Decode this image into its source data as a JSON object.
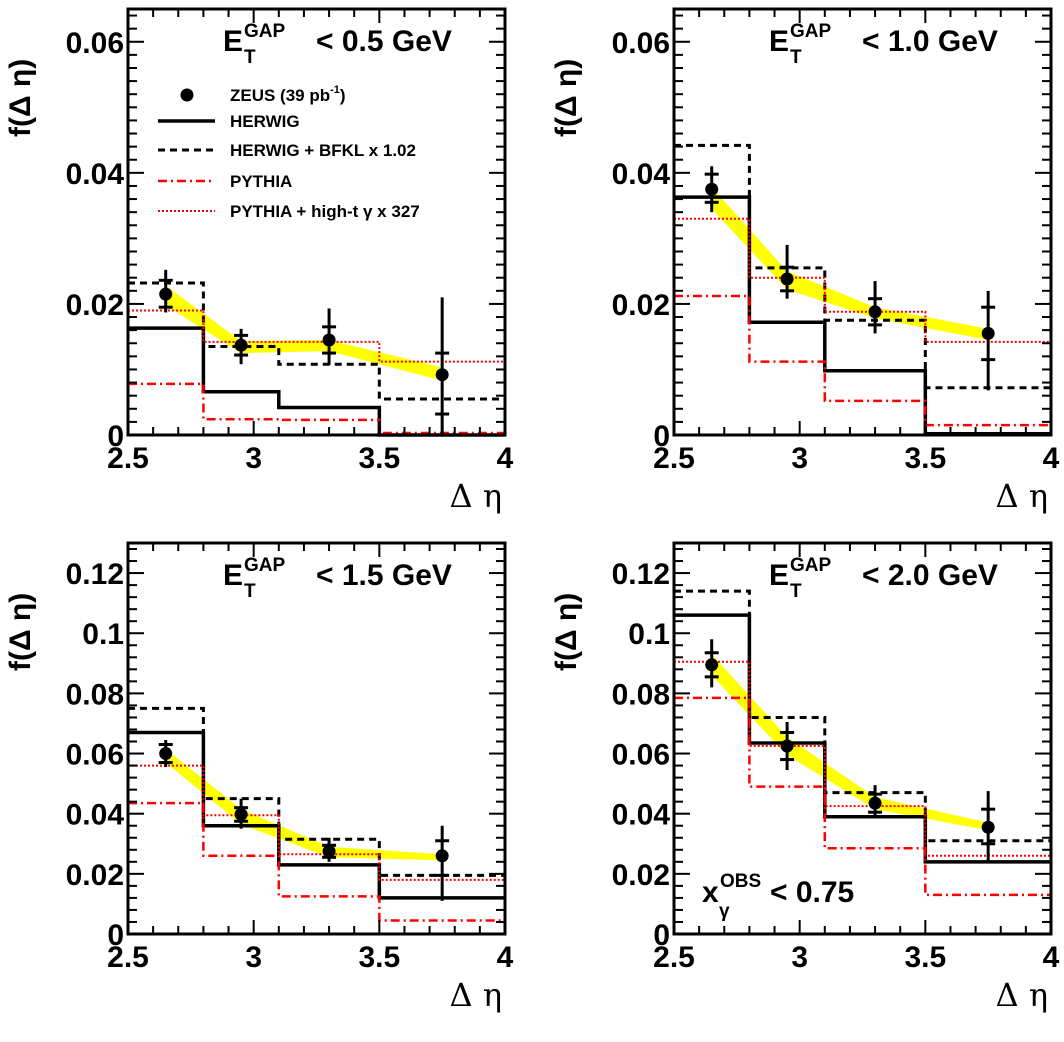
{
  "legend": {
    "zeus": {
      "label": "ZEUS (39 pb",
      "sup": "-1",
      "close": ")"
    },
    "herwig": "HERWIG",
    "herwig_bfkl": "HERWIG + BFKL x 1.02",
    "pythia": "PYTHIA",
    "pythia_hight": "PYTHIA + high-t γ x 327"
  },
  "colors": {
    "data": "#000000",
    "herwig": "#000000",
    "herwig_bfkl": "#000000",
    "pythia": "#ff0000",
    "pythia_hight": "#ff0000",
    "band": "#ffff00"
  },
  "chart_data": [
    {
      "type": "line",
      "title": {
        "main": "E",
        "sub": "T",
        "sup": "GAP",
        "rest": "< 0.5 GeV"
      },
      "ylabel": "f(Δ η)",
      "xlabel": "Δ η",
      "xlim": [
        2.5,
        4.0
      ],
      "ylim": [
        0,
        0.065
      ],
      "xticks": [
        "2.5",
        "3",
        "3.5",
        "4"
      ],
      "yticks": [
        {
          "v": 0,
          "l": "0"
        },
        {
          "v": 0.02,
          "l": "0.02"
        },
        {
          "v": 0.04,
          "l": "0.04"
        },
        {
          "v": 0.06,
          "l": "0.06"
        }
      ],
      "bin_edges": [
        2.5,
        2.8,
        3.1,
        3.5,
        4.0
      ],
      "data": {
        "x": [
          2.65,
          2.95,
          3.3,
          3.75
        ],
        "y": [
          0.0215,
          0.0137,
          0.0145,
          0.0092
        ],
        "stat_lo": [
          0.0195,
          0.0122,
          0.0125,
          0.0032
        ],
        "stat_hi": [
          0.0236,
          0.0152,
          0.0165,
          0.0125
        ],
        "tot_lo": [
          0.0187,
          0.0108,
          0.0107,
          0.0
        ],
        "tot_hi": [
          0.0252,
          0.0162,
          0.0193,
          0.021
        ]
      },
      "band": {
        "x": [
          2.65,
          2.95,
          3.3,
          3.75
        ],
        "lo": [
          0.0198,
          0.0125,
          0.0128,
          0.0083
        ],
        "hi": [
          0.0228,
          0.0143,
          0.0145,
          0.0103
        ]
      },
      "series": [
        {
          "name": "HERWIG",
          "values": [
            0.0163,
            0.0066,
            0.0042,
            0.0
          ]
        },
        {
          "name": "HERWIG + BFKL x 1.02",
          "values": [
            0.0232,
            0.0135,
            0.0108,
            0.0055
          ]
        },
        {
          "name": "PYTHIA",
          "values": [
            0.0078,
            0.0024,
            0.0023,
            0.0003
          ]
        },
        {
          "name": "PYTHIA + high-t γ x 327",
          "values": [
            0.019,
            0.0142,
            0.0142,
            0.0112
          ]
        }
      ]
    },
    {
      "type": "line",
      "title": {
        "main": "E",
        "sub": "T",
        "sup": "GAP",
        "rest": "< 1.0 GeV"
      },
      "ylabel": "f(Δ η)",
      "xlabel": "Δ η",
      "xlim": [
        2.5,
        4.0
      ],
      "ylim": [
        0,
        0.065
      ],
      "xticks": [
        "2.5",
        "3",
        "3.5",
        "4"
      ],
      "yticks": [
        {
          "v": 0,
          "l": "0"
        },
        {
          "v": 0.02,
          "l": "0.02"
        },
        {
          "v": 0.04,
          "l": "0.04"
        },
        {
          "v": 0.06,
          "l": "0.06"
        }
      ],
      "bin_edges": [
        2.5,
        2.8,
        3.1,
        3.5,
        4.0
      ],
      "data": {
        "x": [
          2.65,
          2.95,
          3.3,
          3.75
        ],
        "y": [
          0.0375,
          0.0238,
          0.0188,
          0.0155
        ],
        "stat_lo": [
          0.0355,
          0.022,
          0.0168,
          0.0115
        ],
        "stat_hi": [
          0.0398,
          0.0256,
          0.0208,
          0.0195
        ],
        "tot_lo": [
          0.034,
          0.0208,
          0.0155,
          0.0068
        ],
        "tot_hi": [
          0.041,
          0.029,
          0.0235,
          0.022
        ]
      },
      "band": {
        "x": [
          2.65,
          2.95,
          3.3,
          3.75
        ],
        "lo": [
          0.0345,
          0.0222,
          0.0178,
          0.0145
        ],
        "hi": [
          0.0378,
          0.025,
          0.0195,
          0.0162
        ]
      },
      "series": [
        {
          "name": "HERWIG",
          "values": [
            0.0363,
            0.0172,
            0.0098,
            0.0002
          ]
        },
        {
          "name": "HERWIG + BFKL x 1.02",
          "values": [
            0.0442,
            0.0255,
            0.0175,
            0.0072
          ]
        },
        {
          "name": "PYTHIA",
          "values": [
            0.0212,
            0.0112,
            0.0052,
            0.0015
          ]
        },
        {
          "name": "PYTHIA + high-t γ x 327",
          "values": [
            0.033,
            0.024,
            0.0188,
            0.0142
          ]
        }
      ]
    },
    {
      "type": "line",
      "title": {
        "main": "E",
        "sub": "T",
        "sup": "GAP",
        "rest": "< 1.5 GeV"
      },
      "ylabel": "f(Δ η)",
      "xlabel": "Δ η",
      "xlim": [
        2.5,
        4.0
      ],
      "ylim": [
        0,
        0.13
      ],
      "xticks": [
        "2.5",
        "3",
        "3.5",
        "4"
      ],
      "yticks": [
        {
          "v": 0,
          "l": "0"
        },
        {
          "v": 0.02,
          "l": "0.02"
        },
        {
          "v": 0.04,
          "l": "0.04"
        },
        {
          "v": 0.06,
          "l": "0.06"
        },
        {
          "v": 0.08,
          "l": "0.08"
        },
        {
          "v": 0.1,
          "l": "0.1"
        },
        {
          "v": 0.12,
          "l": "0.12"
        }
      ],
      "bin_edges": [
        2.5,
        2.8,
        3.1,
        3.5,
        4.0
      ],
      "data": {
        "x": [
          2.65,
          2.95,
          3.3,
          3.75
        ],
        "y": [
          0.06,
          0.0398,
          0.0275,
          0.026
        ],
        "stat_lo": [
          0.057,
          0.0375,
          0.0255,
          0.0195
        ],
        "stat_hi": [
          0.063,
          0.042,
          0.0295,
          0.031
        ],
        "tot_lo": [
          0.0555,
          0.035,
          0.024,
          0.011
        ],
        "tot_hi": [
          0.0645,
          0.045,
          0.032,
          0.036
        ]
      },
      "band": {
        "x": [
          2.65,
          2.95,
          3.3,
          3.75
        ],
        "lo": [
          0.057,
          0.0365,
          0.0255,
          0.0245
        ],
        "hi": [
          0.0615,
          0.0415,
          0.029,
          0.0265
        ]
      },
      "series": [
        {
          "name": "HERWIG",
          "values": [
            0.067,
            0.036,
            0.023,
            0.012
          ]
        },
        {
          "name": "HERWIG + BFKL x 1.02",
          "values": [
            0.075,
            0.045,
            0.0315,
            0.0195
          ]
        },
        {
          "name": "PYTHIA",
          "values": [
            0.0435,
            0.026,
            0.0125,
            0.0045
          ]
        },
        {
          "name": "PYTHIA + high-t γ x 327",
          "values": [
            0.056,
            0.0395,
            0.0265,
            0.018
          ]
        }
      ]
    },
    {
      "type": "line",
      "title": {
        "main": "E",
        "sub": "T",
        "sup": "GAP",
        "rest": "< 2.0 GeV"
      },
      "note": {
        "main": "x",
        "sub": "γ",
        "sup": "OBS",
        "rest": "< 0.75"
      },
      "ylabel": "f(Δ η)",
      "xlabel": "Δ η",
      "xlim": [
        2.5,
        4.0
      ],
      "ylim": [
        0,
        0.13
      ],
      "xticks": [
        "2.5",
        "3",
        "3.5",
        "4"
      ],
      "yticks": [
        {
          "v": 0,
          "l": "0"
        },
        {
          "v": 0.02,
          "l": "0.02"
        },
        {
          "v": 0.04,
          "l": "0.04"
        },
        {
          "v": 0.06,
          "l": "0.06"
        },
        {
          "v": 0.08,
          "l": "0.08"
        },
        {
          "v": 0.1,
          "l": "0.1"
        },
        {
          "v": 0.12,
          "l": "0.12"
        }
      ],
      "bin_edges": [
        2.5,
        2.8,
        3.1,
        3.5,
        4.0
      ],
      "data": {
        "x": [
          2.65,
          2.95,
          3.3,
          3.75
        ],
        "y": [
          0.0895,
          0.0625,
          0.0435,
          0.0355
        ],
        "stat_lo": [
          0.0855,
          0.058,
          0.0405,
          0.03
        ],
        "stat_hi": [
          0.0935,
          0.067,
          0.0465,
          0.0415
        ],
        "tot_lo": [
          0.082,
          0.0545,
          0.0385,
          0.024
        ],
        "tot_hi": [
          0.098,
          0.0705,
          0.0495,
          0.0475
        ]
      },
      "band": {
        "x": [
          2.65,
          2.95,
          3.3,
          3.75
        ],
        "lo": [
          0.086,
          0.0595,
          0.0415,
          0.0345
        ],
        "hi": [
          0.093,
          0.0655,
          0.0455,
          0.037
        ]
      },
      "series": [
        {
          "name": "HERWIG",
          "values": [
            0.106,
            0.0635,
            0.039,
            0.024
          ]
        },
        {
          "name": "HERWIG + BFKL x 1.02",
          "values": [
            0.114,
            0.072,
            0.047,
            0.031
          ]
        },
        {
          "name": "PYTHIA",
          "values": [
            0.0785,
            0.049,
            0.0285,
            0.013
          ]
        },
        {
          "name": "PYTHIA + high-t γ x 327",
          "values": [
            0.0905,
            0.0625,
            0.0425,
            0.026
          ]
        }
      ]
    }
  ]
}
